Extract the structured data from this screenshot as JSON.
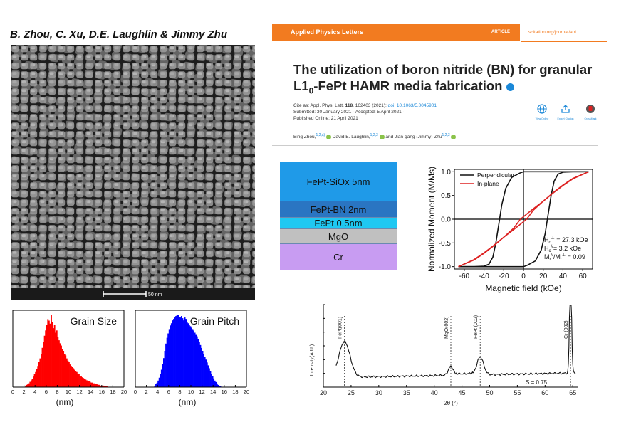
{
  "authors": "B. Zhou, C. Xu, D.E. Laughlin & Jimmy Zhu",
  "sem": {
    "scalebar_label": "50 nm"
  },
  "article": {
    "journal": "Applied Physics Letters",
    "type": "ARTICLE",
    "url": "scitation.org/journal/apl",
    "title_line1": "The utilization of boron nitride (BN) for granular",
    "title_line2_pre": "L1",
    "title_line2_sub": "0",
    "title_line2_post": "-FePt HAMR media fabrication",
    "cite_pre": "Cite as: Appl. Phys. Lett. ",
    "cite_vol": "118",
    "cite_post": ", 162403 (2021); ",
    "doi": "doi: 10.1063/5.0045901",
    "submitted": "Submitted: 30 January 2021 · Accepted: 5 April 2021 ·",
    "published": "Published Online: 21 April 2021",
    "actions": [
      "View Online",
      "Export Citation",
      "CrossMark"
    ],
    "byline_1": "Bing Zhou,",
    "byline_1_sup": "1,2,a)",
    "byline_2": "David E. Laughlin,",
    "byline_2_sup": "1,2,3",
    "byline_3": "and Jian-gang (Jimmy) Zhu",
    "byline_3_sup": "1,2,3"
  },
  "stack": [
    {
      "label": "FePt-SiOx 5nm",
      "color": "#1f9ae8"
    },
    {
      "label": "FePt-BN 2nm",
      "color": "#2a75c2"
    },
    {
      "label": "FePt 0.5nm",
      "color": "#1fc8f2"
    },
    {
      "label": "MgO",
      "color": "#c0c0c0"
    },
    {
      "label": "Cr",
      "color": "#c89cf2"
    }
  ],
  "colors": {
    "orange": "#f27b20",
    "perp": "#111111",
    "inplane": "#dd2222",
    "size_hist": "#ff0000",
    "pitch_hist": "#0000ff"
  },
  "chart_data": [
    {
      "type": "line",
      "xlabel": "Magnetic field (kOe)",
      "ylabel": "Normalized Moment (M/Ms)",
      "xlim": [
        -70,
        70
      ],
      "ylim": [
        -1.05,
        1.05
      ],
      "xticks": [
        "-60",
        "-40",
        "-20",
        "0",
        "20",
        "40",
        "60"
      ],
      "yticks": [
        "1.0",
        "0.5",
        "0.0",
        "-0.5",
        "-1.0"
      ],
      "legend": [
        "Perpendicular",
        "In-plane"
      ],
      "annotations": {
        "hc_perp_pre": "H",
        "hc_perp_sub": "c",
        "hc_perp_sup": "⊥",
        "hc_perp_val": " = 27.3 kOe",
        "hc_in_pre": "H",
        "hc_in_sub": "c",
        "hc_in_sup": "//",
        "hc_in_val": "= 3.2 kOe",
        "ratio_text": "M",
        "ratio_sub1": "r",
        "ratio_sup1": "//",
        "ratio_mid": "/M",
        "ratio_sub2": "r",
        "ratio_sup2": "⊥",
        "ratio_val": " = 0.09"
      },
      "series": [
        {
          "name": "Perpendicular",
          "branch_down": [
            [
              66,
              1
            ],
            [
              50,
              1
            ],
            [
              40,
              0.99
            ],
            [
              35,
              0.95
            ],
            [
              31,
              0.8
            ],
            [
              28,
              0.5
            ],
            [
              25,
              0.1
            ],
            [
              22,
              -0.3
            ],
            [
              18,
              -0.65
            ],
            [
              12,
              -0.88
            ],
            [
              4,
              -0.97
            ],
            [
              0,
              -1
            ],
            [
              -66,
              -1
            ]
          ],
          "branch_up": [
            [
              -66,
              -1
            ],
            [
              -50,
              -1
            ],
            [
              -40,
              -0.99
            ],
            [
              -35,
              -0.95
            ],
            [
              -31,
              -0.8
            ],
            [
              -28,
              -0.5
            ],
            [
              -25,
              -0.1
            ],
            [
              -22,
              0.3
            ],
            [
              -18,
              0.65
            ],
            [
              -12,
              0.88
            ],
            [
              -4,
              0.97
            ],
            [
              0,
              1
            ],
            [
              66,
              1
            ]
          ]
        },
        {
          "name": "In-plane",
          "branch_down": [
            [
              66,
              1
            ],
            [
              50,
              0.86
            ],
            [
              40,
              0.72
            ],
            [
              30,
              0.56
            ],
            [
              20,
              0.38
            ],
            [
              10,
              0.19
            ],
            [
              3.2,
              0
            ],
            [
              -10,
              -0.22
            ],
            [
              -20,
              -0.38
            ],
            [
              -30,
              -0.55
            ],
            [
              -40,
              -0.71
            ],
            [
              -50,
              -0.85
            ],
            [
              -66,
              -1
            ]
          ],
          "branch_up": [
            [
              -66,
              -1
            ],
            [
              -50,
              -0.86
            ],
            [
              -40,
              -0.72
            ],
            [
              -30,
              -0.56
            ],
            [
              -20,
              -0.38
            ],
            [
              -10,
              -0.19
            ],
            [
              -3.2,
              0
            ],
            [
              10,
              0.22
            ],
            [
              20,
              0.38
            ],
            [
              30,
              0.55
            ],
            [
              40,
              0.71
            ],
            [
              50,
              0.85
            ],
            [
              66,
              1
            ]
          ]
        }
      ]
    },
    {
      "type": "line",
      "xlabel": "2θ (°)",
      "ylabel": "Intensity(A.U.)",
      "xlim": [
        20,
        66
      ],
      "xticks": [
        "20",
        "25",
        "30",
        "35",
        "40",
        "45",
        "50",
        "55",
        "60",
        "65"
      ],
      "peaks": [
        {
          "label": "FePt(001)",
          "pos": 23.8
        },
        {
          "label": "MgO(002)",
          "pos": 43.0
        },
        {
          "label": "FePt (002)",
          "pos": 48.3
        },
        {
          "label": "Cr (002)",
          "pos": 64.6
        }
      ],
      "annotation": "S = 0.75"
    },
    {
      "type": "bar",
      "title": "Grain Size",
      "xlabel": "(nm)",
      "xticks": [
        "0",
        "2",
        "4",
        "6",
        "8",
        "10",
        "12",
        "14",
        "16",
        "18",
        "20"
      ],
      "xlim": [
        0,
        20
      ],
      "bin_width": 0.2,
      "bins_start": 2.2,
      "values": [
        2,
        3,
        4,
        5,
        7,
        9,
        11,
        14,
        17,
        20,
        24,
        28,
        33,
        38,
        44,
        52,
        60,
        68,
        75,
        82,
        90,
        88,
        84,
        96,
        86,
        78,
        82,
        72,
        75,
        66,
        62,
        58,
        55,
        50,
        48,
        44,
        42,
        38,
        35,
        33,
        30,
        28,
        27,
        25,
        23,
        21,
        20,
        18,
        17,
        15,
        14,
        13,
        12,
        11,
        10,
        9,
        8,
        8,
        7,
        6,
        6,
        5,
        5,
        4,
        4,
        3,
        3,
        2,
        2,
        2,
        2,
        1,
        1,
        1
      ]
    },
    {
      "type": "bar",
      "title": "Grain Pitch",
      "xlabel": "(nm)",
      "xticks": [
        "0",
        "2",
        "4",
        "6",
        "8",
        "10",
        "12",
        "14",
        "16",
        "18",
        "20"
      ],
      "xlim": [
        0,
        20
      ],
      "bin_width": 0.2,
      "bins_start": 3.4,
      "values": [
        2,
        4,
        6,
        9,
        13,
        18,
        24,
        32,
        40,
        50,
        60,
        68,
        74,
        80,
        85,
        88,
        92,
        94,
        96,
        98,
        100,
        99,
        97,
        96,
        98,
        95,
        92,
        96,
        94,
        90,
        88,
        86,
        84,
        82,
        80,
        78,
        75,
        72,
        70,
        66,
        62,
        58,
        54,
        50,
        46,
        42,
        38,
        34,
        30,
        26,
        22,
        18,
        15,
        12,
        9,
        7,
        5,
        3,
        2,
        1
      ]
    }
  ]
}
